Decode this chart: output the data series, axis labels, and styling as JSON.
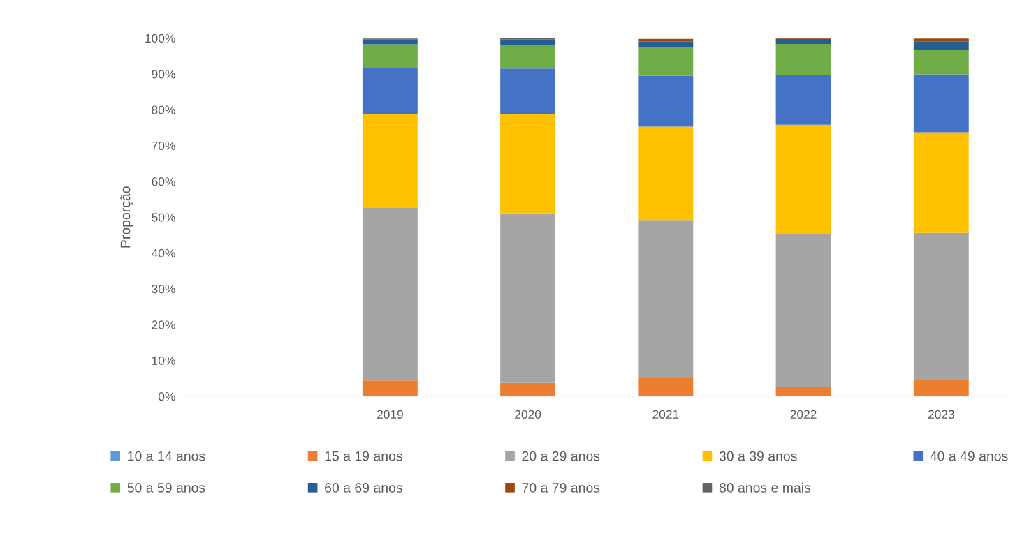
{
  "chart_data": {
    "type": "bar",
    "stacked": true,
    "ylabel": "Proporção",
    "categories": [
      null,
      "2019",
      "2020",
      "2021",
      "2022",
      "2023"
    ],
    "series": [
      {
        "name": "10 a 14 anos",
        "color": "#5b9bd5",
        "values": [
          null,
          null,
          0,
          null,
          0,
          0
        ]
      },
      {
        "name": "15 a 19 anos",
        "color": "#ed7d31",
        "values": [
          null,
          4.4,
          3.7,
          5.1,
          2.7,
          4.5
        ]
      },
      {
        "name": "20 a 29 anos",
        "color": "#a5a5a5",
        "values": [
          null,
          48.3,
          47.4,
          44.1,
          42.5,
          41.1
        ]
      },
      {
        "name": "30 a 39 anos",
        "color": "#ffc000",
        "values": [
          null,
          26.1,
          27.7,
          26.1,
          30.6,
          28.1
        ]
      },
      {
        "name": "40 a 49 anos",
        "color": "#4472c4",
        "values": [
          null,
          12.9,
          12.7,
          14.2,
          13.9,
          16.2
        ]
      },
      {
        "name": "50 a 59 anos",
        "color": "#70ad47",
        "values": [
          null,
          6.6,
          6.4,
          7.8,
          8.7,
          6.8
        ]
      },
      {
        "name": "60 a 69 anos",
        "color": "#255e91",
        "values": [
          null,
          1.1,
          1.6,
          1.7,
          1.4,
          2.4
        ]
      },
      {
        "name": "70 a 79 anos",
        "color": "#9e480e",
        "values": [
          null,
          0.3,
          0.2,
          0.8,
          0.2,
          0.8
        ]
      },
      {
        "name": "80 anos e mais",
        "color": "#636363",
        "values": [
          null,
          0.2,
          0.3,
          null,
          0,
          null
        ]
      }
    ],
    "ylim": [
      0,
      100
    ],
    "yticks": [
      {
        "value": 0,
        "label": "0%"
      },
      {
        "value": 10,
        "label": "10%"
      },
      {
        "value": 20,
        "label": "20%"
      },
      {
        "value": 30,
        "label": "30%"
      },
      {
        "value": 40,
        "label": "40%"
      },
      {
        "value": 50,
        "label": "50%"
      },
      {
        "value": 60,
        "label": "60%"
      },
      {
        "value": 70,
        "label": "70%"
      },
      {
        "value": 80,
        "label": "80%"
      },
      {
        "value": 90,
        "label": "90%"
      },
      {
        "value": 100,
        "label": "100%"
      }
    ],
    "grid": false,
    "legend": "bottom"
  }
}
